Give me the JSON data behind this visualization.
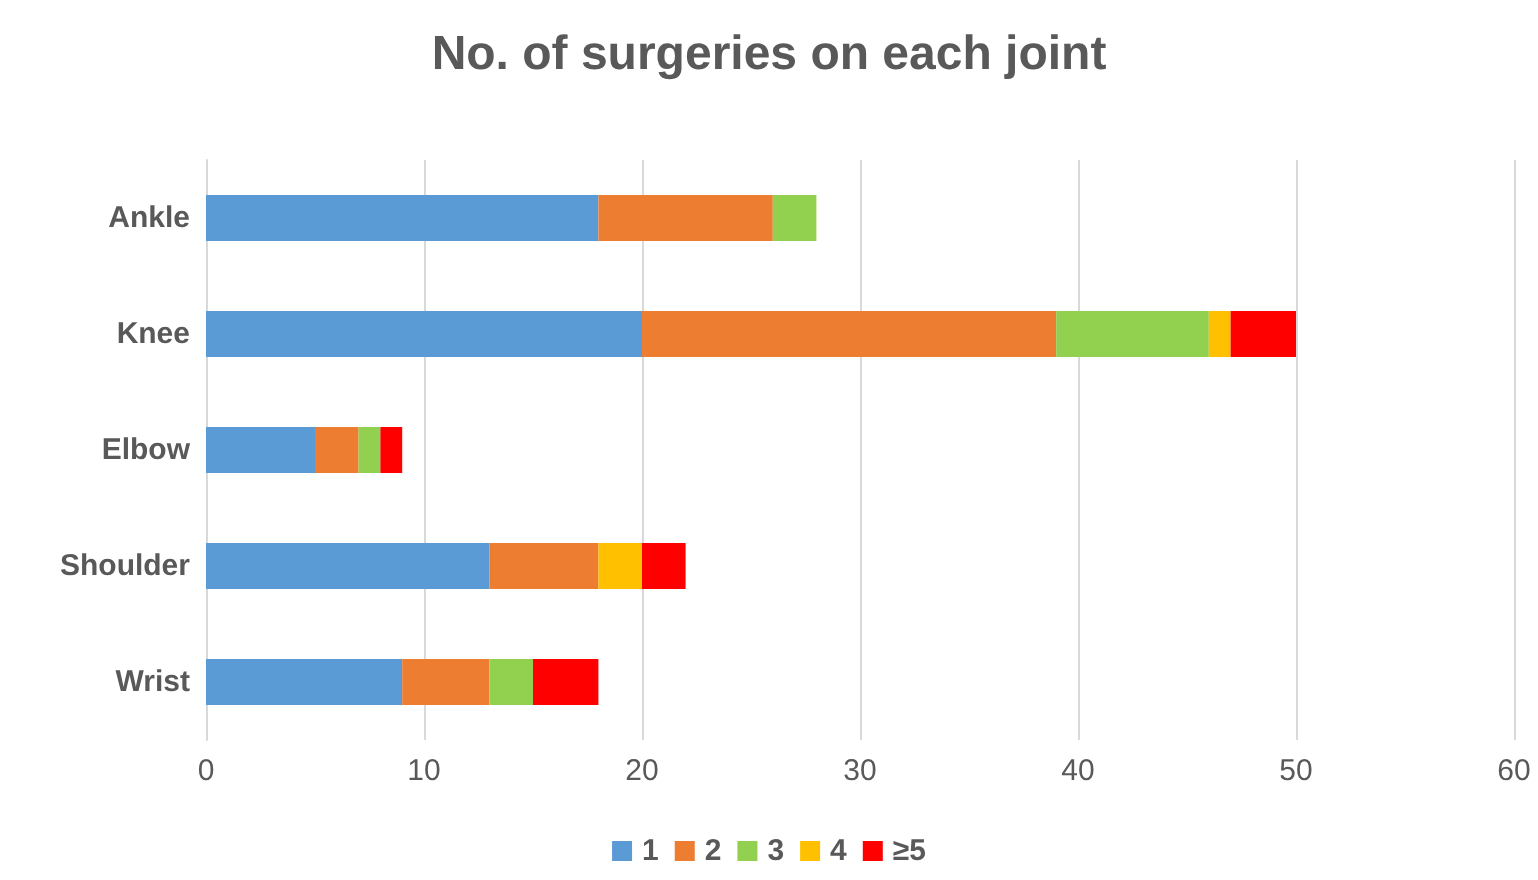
{
  "chart_data": {
    "type": "bar",
    "title": "No. of surgeries on each joint",
    "orientation": "horizontal",
    "stacked": true,
    "categories": [
      "Ankle",
      "Knee",
      "Elbow",
      "Shoulder",
      "Wrist"
    ],
    "series": [
      {
        "name": "1",
        "color": "#5b9bd5",
        "values": [
          18,
          20,
          5,
          13,
          9
        ]
      },
      {
        "name": "2",
        "color": "#ed7d31",
        "values": [
          8,
          19,
          2,
          5,
          4
        ]
      },
      {
        "name": "3",
        "color": "#92d050",
        "values": [
          2,
          7,
          1,
          0,
          2
        ]
      },
      {
        "name": "4",
        "color": "#ffc000",
        "values": [
          0,
          1,
          0,
          2,
          0
        ]
      },
      {
        "name": "≥5",
        "color": "#ff0000",
        "values": [
          0,
          3,
          1,
          2,
          3
        ]
      }
    ],
    "xlim": [
      0,
      60
    ],
    "xticks": [
      0,
      10,
      20,
      30,
      40,
      50,
      60
    ],
    "grid": "x",
    "legend": "bottom"
  }
}
